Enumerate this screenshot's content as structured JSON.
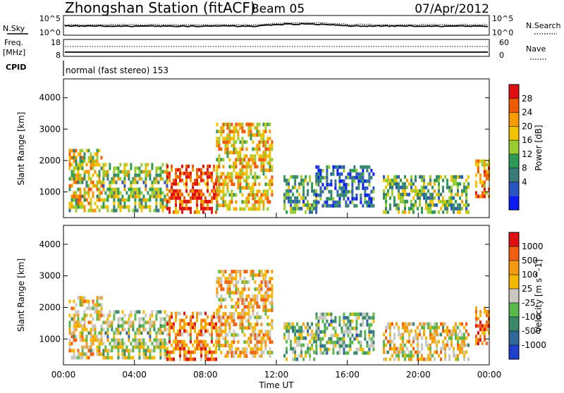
{
  "header": {
    "station": "Zhongshan Station (fitACF)",
    "beam": "Beam 05",
    "date": "07/Apr/2012"
  },
  "top_panels": {
    "nsky_label": "N.Sky",
    "nsearch_label": "N.Search",
    "noise_ticks_left": [
      "10^5",
      "10^0"
    ],
    "noise_ticks_right": [
      "10^5",
      "10^0"
    ],
    "freq_label_1": "Freq.",
    "freq_label_2": "[MHz]",
    "freq_ticks": [
      "18",
      "8"
    ],
    "nave_label": "Nave",
    "nave_ticks": [
      "60",
      "0"
    ],
    "cpid_label": "CPID",
    "cpid_value": "normal (fast stereo) 153"
  },
  "chart_data": [
    {
      "type": "heatmap",
      "name": "power",
      "xlabel": "Time UT",
      "ylabel": "Slant Range [km]",
      "x_ticks": [
        "00:00",
        "04:00",
        "08:00",
        "12:00",
        "16:00",
        "20:00",
        "00:00"
      ],
      "xlim": [
        0,
        24
      ],
      "y_ticks": [
        1000,
        2000,
        3000,
        4000
      ],
      "ylim": [
        180,
        4600
      ],
      "colorbar": {
        "label": "Power [dB]",
        "ticks": [
          "4",
          "8",
          "12",
          "16",
          "20",
          "24",
          "28"
        ],
        "colors": [
          "#0a1cf0",
          "#2b56c0",
          "#3a7a7a",
          "#2f9a55",
          "#9acd32",
          "#f0c200",
          "#f79a00",
          "#f05a00",
          "#e01010"
        ]
      },
      "echo_regions": [
        {
          "t0": 0.3,
          "t1": 2.2,
          "r0": 350,
          "r1": 2300,
          "level": 0.55
        },
        {
          "t0": 2.2,
          "t1": 5.8,
          "r0": 350,
          "r1": 1900,
          "level": 0.45
        },
        {
          "t0": 5.8,
          "t1": 8.6,
          "r0": 300,
          "r1": 1800,
          "level": 0.85
        },
        {
          "t0": 8.6,
          "t1": 11.8,
          "r0": 400,
          "r1": 3100,
          "level": 0.6
        },
        {
          "t0": 12.4,
          "t1": 14.2,
          "r0": 300,
          "r1": 1500,
          "level": 0.35
        },
        {
          "t0": 14.2,
          "t1": 17.5,
          "r0": 500,
          "r1": 1800,
          "level": 0.2
        },
        {
          "t0": 18.0,
          "t1": 22.8,
          "r0": 300,
          "r1": 1500,
          "level": 0.4
        },
        {
          "t0": 23.2,
          "t1": 24.0,
          "r0": 800,
          "r1": 2000,
          "level": 0.7
        }
      ]
    },
    {
      "type": "heatmap",
      "name": "velocity",
      "xlabel": "Time UT",
      "ylabel": "Slant Range [km]",
      "x_ticks": [
        "00:00",
        "04:00",
        "08:00",
        "12:00",
        "16:00",
        "20:00",
        "00:00"
      ],
      "xlim": [
        0,
        24
      ],
      "y_ticks": [
        1000,
        2000,
        3000,
        4000
      ],
      "ylim": [
        180,
        4600
      ],
      "colorbar": {
        "label": "Velocity [m s^-1]",
        "ticks": [
          "1000",
          "500",
          "100",
          "25",
          "-25",
          "-100",
          "-500",
          "-1000"
        ],
        "colors": [
          "#1f3fd0",
          "#2f6a9a",
          "#3a8a6a",
          "#5ab84a",
          "#c8c8c0",
          "#f5b800",
          "#f59a10",
          "#f06010",
          "#e01010"
        ]
      },
      "echo_regions": [
        {
          "t0": 0.3,
          "t1": 2.2,
          "r0": 350,
          "r1": 2300,
          "level": 0.55
        },
        {
          "t0": 2.2,
          "t1": 5.8,
          "r0": 350,
          "r1": 1900,
          "level": 0.45
        },
        {
          "t0": 5.8,
          "t1": 8.6,
          "r0": 300,
          "r1": 1800,
          "level": 0.7
        },
        {
          "t0": 8.6,
          "t1": 11.8,
          "r0": 400,
          "r1": 3100,
          "level": 0.6
        },
        {
          "t0": 12.4,
          "t1": 14.2,
          "r0": 300,
          "r1": 1500,
          "level": 0.4
        },
        {
          "t0": 14.2,
          "t1": 17.5,
          "r0": 500,
          "r1": 1800,
          "level": 0.35
        },
        {
          "t0": 18.0,
          "t1": 22.8,
          "r0": 300,
          "r1": 1500,
          "level": 0.55
        },
        {
          "t0": 23.2,
          "t1": 24.0,
          "r0": 800,
          "r1": 2000,
          "level": 0.75
        }
      ]
    }
  ]
}
